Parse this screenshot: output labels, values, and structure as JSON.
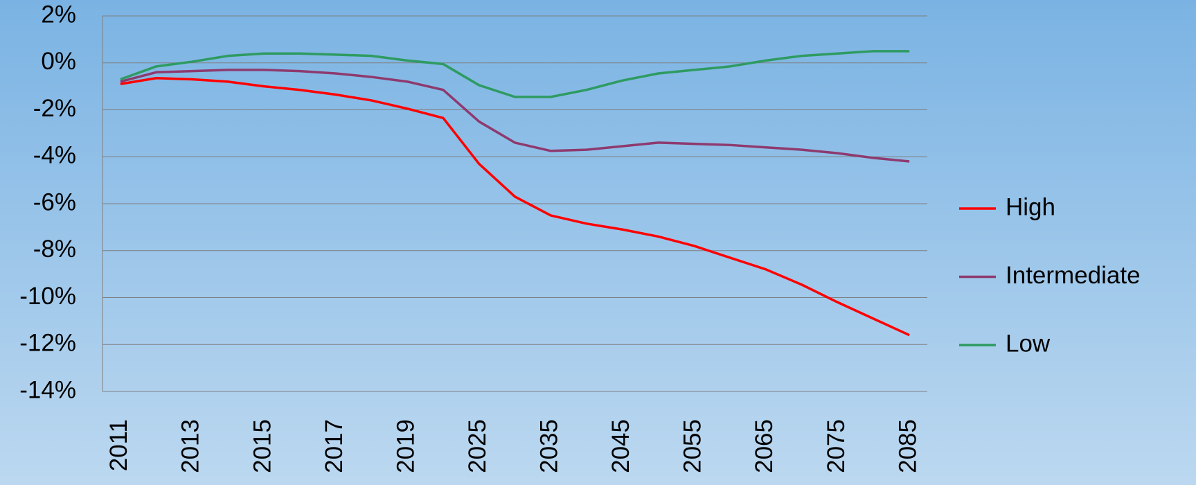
{
  "chart_data": {
    "type": "line",
    "categories": [
      "2011",
      null,
      "2013",
      null,
      "2015",
      null,
      "2017",
      null,
      "2019",
      null,
      "2025",
      null,
      "2035",
      null,
      "2045",
      null,
      "2055",
      null,
      "2065",
      null,
      "2075",
      null,
      "2085"
    ],
    "series": [
      {
        "name": "High",
        "color": "#ff0000",
        "values": [
          -0.9,
          -0.65,
          -0.7,
          -0.8,
          -1.0,
          -1.15,
          -1.35,
          -1.6,
          -1.95,
          -2.35,
          -4.3,
          -5.7,
          -6.5,
          -6.85,
          -7.1,
          -7.4,
          -7.8,
          -8.3,
          -8.8,
          -9.45,
          -10.2,
          -10.9,
          -11.6
        ]
      },
      {
        "name": "Intermediate",
        "color": "#8e3a6e",
        "values": [
          -0.8,
          -0.4,
          -0.35,
          -0.3,
          -0.3,
          -0.35,
          -0.45,
          -0.6,
          -0.8,
          -1.15,
          -2.5,
          -3.4,
          -3.75,
          -3.7,
          -3.55,
          -3.4,
          -3.45,
          -3.5,
          -3.6,
          -3.7,
          -3.85,
          -4.05,
          -4.2
        ]
      },
      {
        "name": "Low",
        "color": "#2e9b62",
        "values": [
          -0.7,
          -0.15,
          0.05,
          0.3,
          0.4,
          0.4,
          0.35,
          0.3,
          0.1,
          -0.05,
          -0.95,
          -1.45,
          -1.45,
          -1.15,
          -0.75,
          -0.45,
          -0.3,
          -0.15,
          0.1,
          0.3,
          0.4,
          0.5,
          0.5
        ]
      }
    ],
    "ylim": [
      -14,
      2
    ],
    "yticks": [
      {
        "value": -14,
        "label": "-14%"
      },
      {
        "value": -12,
        "label": "-12%"
      },
      {
        "value": -10,
        "label": "-10%"
      },
      {
        "value": -8,
        "label": "-8%"
      },
      {
        "value": -6,
        "label": "-6%"
      },
      {
        "value": -4,
        "label": "-4%"
      },
      {
        "value": -2,
        "label": "-2%"
      },
      {
        "value": 0,
        "label": "0%"
      },
      {
        "value": 2,
        "label": "2%"
      }
    ],
    "grid": true,
    "legend": "right"
  }
}
